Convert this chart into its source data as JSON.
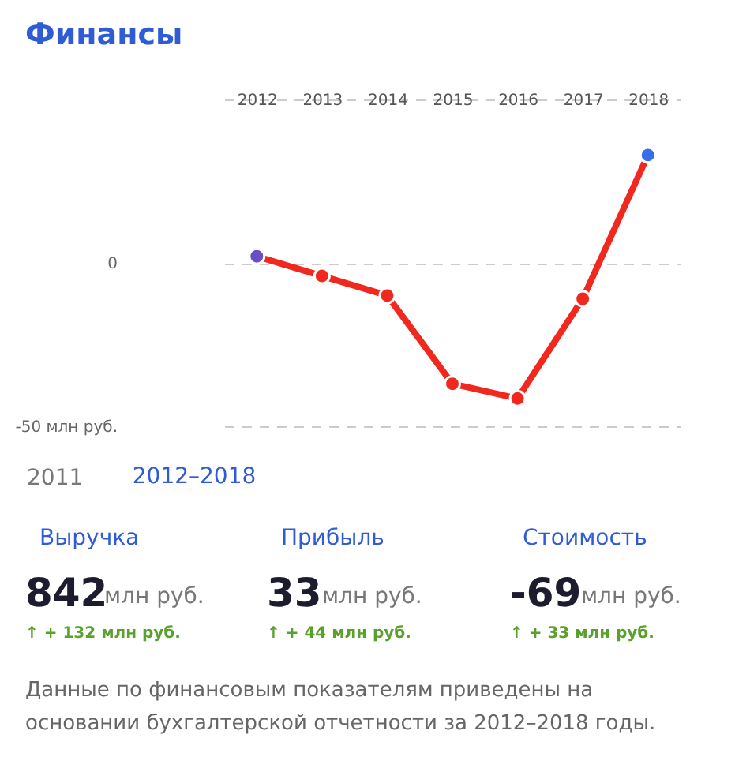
{
  "chart_data": {
    "type": "line",
    "title": "Финансы",
    "categories": [
      "2012",
      "2013",
      "2014",
      "2015",
      "2016",
      "2017",
      "2018"
    ],
    "series": [
      {
        "color": "#f0281e",
        "colors": [
          "#6a4fc4",
          "#f0281e",
          "#f0281e",
          "#f0281e",
          "#f0281e",
          "#f0281e",
          "#3a6ee8"
        ],
        "values": [
          2,
          -4,
          -10,
          -37,
          -41.5,
          -11,
          33
        ]
      }
    ],
    "ylim": [
      -50,
      50
    ],
    "yticks": [
      {
        "value": -50,
        "label": "-50 млн руб."
      },
      0,
      {
        "value": 50,
        "label": null
      }
    ],
    "grid": "y",
    "marker": "circle",
    "line_style": "solid",
    "annotations": [
      "2011",
      "2012–2018",
      "Выручка",
      "842",
      "млн руб.",
      "↑ + 132 млн руб.",
      "Прибыль",
      "33",
      "млн руб.",
      "↑ + 44 млн руб.",
      "Стоимость",
      "-69",
      "млн руб.",
      "↑ + 33 млн руб.",
      "Данные по финансовым показателям приведены на основании бухгалтерской отчетности за 2012–2018 годы."
    ]
  }
}
